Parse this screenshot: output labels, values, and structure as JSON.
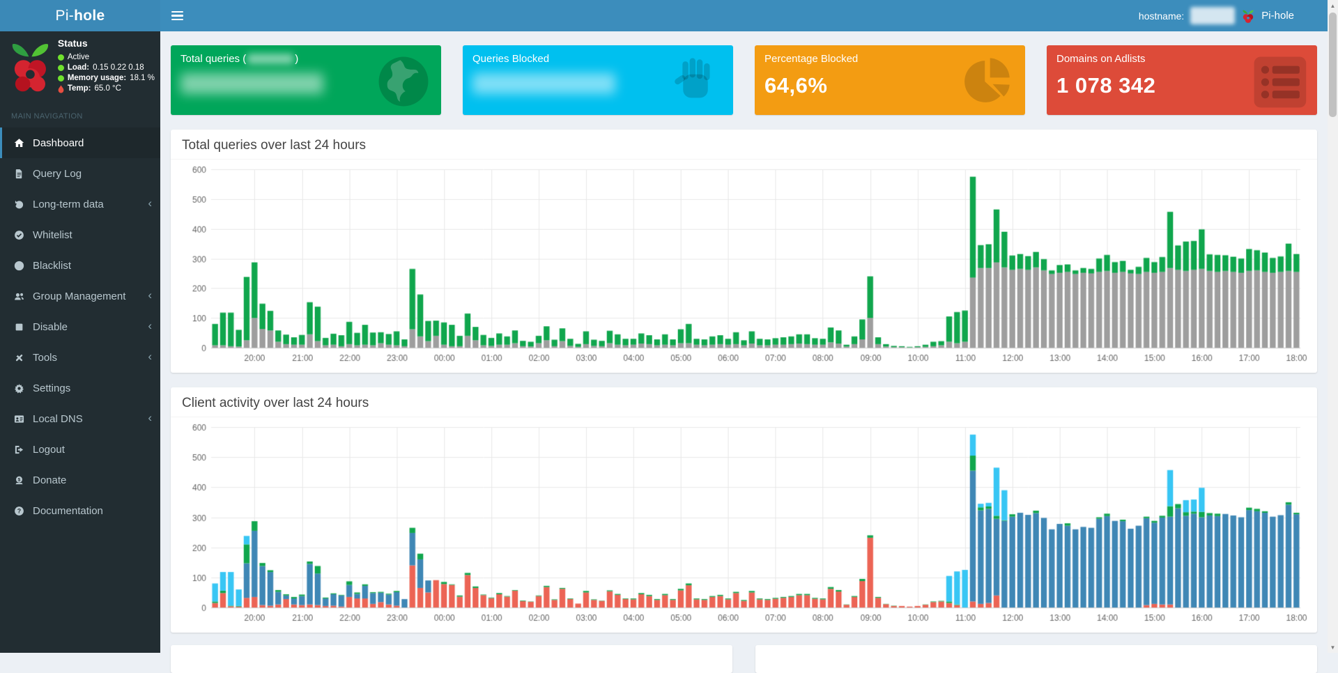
{
  "navbar": {
    "brand_light": "Pi-",
    "brand_bold": "hole",
    "hostname_label": "hostname:",
    "hostname_value": "",
    "right_brand": "Pi-hole"
  },
  "sidebar": {
    "status": {
      "title": "Status",
      "active_label": "Active",
      "load_label": "Load:",
      "load_values": "0.15  0.22  0.18",
      "memory_label": "Memory usage:",
      "memory_value": "18.1 %",
      "temp_label": "Temp:",
      "temp_value": "65.0 °C"
    },
    "section_label": "MAIN NAVIGATION",
    "items": [
      {
        "label": "Dashboard",
        "icon": "home-icon",
        "active": true,
        "has_submenu": false
      },
      {
        "label": "Query Log",
        "icon": "file-icon",
        "active": false,
        "has_submenu": false
      },
      {
        "label": "Long-term data",
        "icon": "history-icon",
        "active": false,
        "has_submenu": true
      },
      {
        "label": "Whitelist",
        "icon": "check-circle-icon",
        "active": false,
        "has_submenu": false
      },
      {
        "label": "Blacklist",
        "icon": "ban-icon",
        "active": false,
        "has_submenu": false
      },
      {
        "label": "Group Management",
        "icon": "users-icon",
        "active": false,
        "has_submenu": true
      },
      {
        "label": "Disable",
        "icon": "stop-icon",
        "active": false,
        "has_submenu": true
      },
      {
        "label": "Tools",
        "icon": "tools-icon",
        "active": false,
        "has_submenu": true
      },
      {
        "label": "Settings",
        "icon": "gear-icon",
        "active": false,
        "has_submenu": false
      },
      {
        "label": "Local DNS",
        "icon": "address-card-icon",
        "active": false,
        "has_submenu": true
      },
      {
        "label": "Logout",
        "icon": "sign-out-icon",
        "active": false,
        "has_submenu": false
      },
      {
        "label": "Donate",
        "icon": "donate-icon",
        "active": false,
        "has_submenu": false
      },
      {
        "label": "Documentation",
        "icon": "question-circle-icon",
        "active": false,
        "has_submenu": false
      }
    ]
  },
  "cards": [
    {
      "title": "Total queries (",
      "title_suffix": ")",
      "title_redacted": true,
      "value": "",
      "value_redacted": true,
      "color": "#00a65a",
      "icon": "globe-icon"
    },
    {
      "title": "Queries Blocked",
      "title_suffix": "",
      "title_redacted": false,
      "value": "",
      "value_redacted": true,
      "color": "#00c0ef",
      "icon": "hand-icon"
    },
    {
      "title": "Percentage Blocked",
      "title_suffix": "",
      "title_redacted": false,
      "value": "64,6%",
      "value_redacted": false,
      "color": "#f39c12",
      "icon": "pie-chart-icon"
    },
    {
      "title": "Domains on Adlists",
      "title_suffix": "",
      "title_redacted": false,
      "value": "1 078 342",
      "value_redacted": false,
      "color": "#dd4b39",
      "icon": "list-icon"
    }
  ],
  "panels": [
    {
      "title": "Total queries over last 24 hours"
    },
    {
      "title": "Client activity over last 24 hours"
    }
  ],
  "chart_data": [
    {
      "type": "bar",
      "stacked": true,
      "title": "Total queries over last 24 hours",
      "xlabel": "",
      "ylabel": "",
      "ylim": [
        0,
        600
      ],
      "yticks": [
        0,
        100,
        200,
        300,
        400,
        500,
        600
      ],
      "grid": true,
      "legend": "none",
      "interval_minutes": 10,
      "x_labels": [
        "20:00",
        "21:00",
        "22:00",
        "23:00",
        "00:00",
        "01:00",
        "02:00",
        "03:00",
        "04:00",
        "05:00",
        "06:00",
        "07:00",
        "08:00",
        "09:00",
        "10:00",
        "11:00",
        "12:00",
        "13:00",
        "14:00",
        "15:00",
        "16:00",
        "17:00",
        "18:00"
      ],
      "first_label_index": 5,
      "label_step": 6,
      "series": [
        {
          "name": "grey",
          "color": "#9e9e9e",
          "values": [
            8,
            8,
            5,
            4,
            25,
            100,
            63,
            58,
            20,
            12,
            10,
            10,
            45,
            22,
            8,
            10,
            5,
            12,
            8,
            10,
            8,
            15,
            10,
            8,
            5,
            62,
            38,
            22,
            40,
            10,
            5,
            5,
            40,
            25,
            8,
            6,
            10,
            10,
            15,
            5,
            4,
            15,
            25,
            5,
            22,
            6,
            3,
            12,
            6,
            5,
            15,
            10,
            8,
            10,
            14,
            12,
            8,
            10,
            8,
            15,
            15,
            10,
            8,
            10,
            12,
            10,
            12,
            8,
            14,
            8,
            8,
            10,
            10,
            12,
            14,
            12,
            10,
            10,
            18,
            14,
            4,
            12,
            28,
            100,
            12,
            4,
            2,
            2,
            1,
            2,
            3,
            5,
            8,
            20,
            15,
            20,
            236,
            268,
            268,
            287,
            270,
            262,
            265,
            262,
            270,
            260,
            248,
            252,
            255,
            248,
            252,
            250,
            255,
            258,
            252,
            255,
            250,
            248,
            255,
            252,
            255,
            268,
            262,
            258,
            262,
            265,
            258,
            255,
            258,
            255,
            252,
            258,
            260,
            255,
            252,
            255,
            258,
            255
          ]
        },
        {
          "name": "green",
          "color": "#10a64d",
          "values": [
            72,
            110,
            113,
            56,
            213,
            187,
            85,
            66,
            38,
            32,
            25,
            33,
            108,
            116,
            25,
            37,
            37,
            75,
            42,
            67,
            43,
            37,
            36,
            47,
            23,
            203,
            141,
            68,
            51,
            75,
            72,
            35,
            75,
            45,
            35,
            27,
            38,
            28,
            43,
            18,
            16,
            25,
            47,
            22,
            43,
            24,
            10,
            43,
            21,
            18,
            42,
            35,
            22,
            20,
            34,
            30,
            20,
            35,
            20,
            47,
            65,
            20,
            20,
            28,
            30,
            20,
            40,
            17,
            41,
            22,
            20,
            22,
            25,
            26,
            31,
            33,
            22,
            20,
            50,
            44,
            6,
            26,
            67,
            140,
            23,
            8,
            4,
            3,
            2,
            3,
            7,
            15,
            14,
            85,
            105,
            105,
            339,
            77,
            80,
            178,
            120,
            48,
            50,
            46,
            52,
            38,
            12,
            26,
            25,
            12,
            16,
            15,
            45,
            54,
            36,
            37,
            12,
            24,
            47,
            36,
            50,
            189,
            82,
            99,
            97,
            133,
            56,
            57,
            53,
            51,
            48,
            74,
            68,
            65,
            50,
            52,
            92,
            60
          ]
        }
      ]
    },
    {
      "type": "bar",
      "stacked": true,
      "title": "Client activity over last 24 hours",
      "xlabel": "",
      "ylabel": "",
      "ylim": [
        0,
        600
      ],
      "yticks": [
        0,
        100,
        200,
        300,
        400,
        500,
        600
      ],
      "grid": true,
      "legend": "none",
      "interval_minutes": 10,
      "x_labels": [
        "20:00",
        "21:00",
        "22:00",
        "23:00",
        "00:00",
        "01:00",
        "02:00",
        "03:00",
        "04:00",
        "05:00",
        "06:00",
        "07:00",
        "08:00",
        "09:00",
        "10:00",
        "11:00",
        "12:00",
        "13:00",
        "14:00",
        "15:00",
        "16:00",
        "17:00",
        "18:00"
      ],
      "first_label_index": 5,
      "label_step": 6,
      "series": [
        {
          "name": "client-red",
          "color": "#ec6455",
          "values": [
            15,
            48,
            4,
            3,
            32,
            35,
            8,
            6,
            10,
            28,
            10,
            8,
            10,
            8,
            5,
            6,
            3,
            35,
            30,
            30,
            12,
            18,
            10,
            6,
            0,
            140,
            65,
            50,
            91,
            78,
            75,
            36,
            108,
            65,
            41,
            31,
            44,
            36,
            56,
            21,
            19,
            38,
            68,
            25,
            62,
            28,
            13,
            50,
            25,
            22,
            54,
            42,
            28,
            27,
            44,
            38,
            25,
            41,
            25,
            57,
            74,
            27,
            25,
            35,
            38,
            27,
            48,
            22,
            50,
            27,
            25,
            29,
            32,
            35,
            41,
            41,
            29,
            27,
            62,
            53,
            9,
            35,
            88,
            232,
            32,
            11,
            5,
            5,
            3,
            5,
            9,
            18,
            20,
            15,
            8,
            0,
            20,
            12,
            15,
            40,
            0,
            0,
            0,
            0,
            0,
            0,
            0,
            0,
            0,
            0,
            0,
            0,
            0,
            0,
            0,
            0,
            0,
            0,
            8,
            12,
            10,
            10,
            0,
            0,
            0,
            0,
            0,
            0,
            0,
            0,
            0,
            0,
            0,
            0,
            0,
            0,
            0,
            0
          ]
        },
        {
          "name": "client-blue",
          "color": "#3f87b5",
          "values": [
            0,
            0,
            0,
            0,
            115,
            220,
            130,
            112,
            42,
            12,
            20,
            30,
            135,
            105,
            25,
            38,
            37,
            40,
            15,
            42,
            36,
            31,
            33,
            45,
            28,
            108,
            95,
            40,
            0,
            0,
            0,
            0,
            0,
            0,
            0,
            0,
            0,
            0,
            0,
            0,
            0,
            0,
            0,
            0,
            0,
            0,
            0,
            0,
            0,
            0,
            0,
            0,
            0,
            0,
            0,
            0,
            0,
            0,
            0,
            0,
            0,
            0,
            0,
            0,
            0,
            0,
            0,
            0,
            0,
            0,
            0,
            0,
            0,
            0,
            0,
            0,
            0,
            0,
            0,
            0,
            0,
            0,
            0,
            0,
            0,
            0,
            0,
            0,
            0,
            0,
            0,
            0,
            0,
            0,
            0,
            0,
            435,
            311,
            313,
            255,
            288,
            302,
            315,
            308,
            314,
            298,
            260,
            278,
            272,
            260,
            268,
            265,
            295,
            304,
            288,
            287,
            262,
            272,
            289,
            270,
            289,
            292,
            330,
            305,
            312,
            300,
            306,
            304,
            311,
            306,
            300,
            324,
            320,
            315,
            302,
            307,
            342,
            310
          ]
        },
        {
          "name": "client-green",
          "color": "#10a64d",
          "values": [
            5,
            8,
            2,
            2,
            63,
            32,
            10,
            6,
            6,
            4,
            5,
            5,
            8,
            25,
            3,
            3,
            2,
            12,
            5,
            5,
            3,
            3,
            3,
            4,
            0,
            17,
            19,
            0,
            0,
            7,
            2,
            4,
            7,
            5,
            2,
            2,
            4,
            2,
            2,
            2,
            1,
            2,
            4,
            2,
            3,
            2,
            0,
            5,
            2,
            1,
            3,
            3,
            2,
            3,
            4,
            4,
            3,
            4,
            3,
            5,
            6,
            3,
            3,
            3,
            4,
            3,
            4,
            3,
            5,
            3,
            3,
            3,
            3,
            3,
            4,
            4,
            3,
            3,
            6,
            5,
            1,
            3,
            7,
            8,
            3,
            1,
            1,
            0,
            0,
            0,
            1,
            2,
            2,
            5,
            2,
            0,
            50,
            10,
            8,
            10,
            2,
            8,
            0,
            0,
            8,
            0,
            0,
            0,
            8,
            0,
            0,
            0,
            5,
            8,
            0,
            5,
            0,
            0,
            5,
            6,
            6,
            35,
            14,
            12,
            7,
            18,
            8,
            8,
            0,
            0,
            0,
            8,
            8,
            5,
            0,
            0,
            8,
            5
          ]
        },
        {
          "name": "client-cyan",
          "color": "#38c6f4",
          "values": [
            60,
            62,
            112,
            55,
            28,
            0,
            0,
            0,
            0,
            0,
            0,
            0,
            0,
            0,
            0,
            0,
            0,
            0,
            0,
            0,
            0,
            0,
            0,
            0,
            0,
            0,
            0,
            0,
            0,
            0,
            0,
            0,
            0,
            0,
            0,
            0,
            0,
            0,
            0,
            0,
            0,
            0,
            0,
            0,
            0,
            0,
            0,
            0,
            0,
            0,
            0,
            0,
            0,
            0,
            0,
            0,
            0,
            0,
            0,
            0,
            0,
            0,
            0,
            0,
            0,
            0,
            0,
            0,
            0,
            0,
            0,
            0,
            0,
            0,
            0,
            0,
            0,
            0,
            0,
            0,
            0,
            0,
            0,
            0,
            0,
            0,
            0,
            0,
            0,
            0,
            0,
            0,
            0,
            85,
            110,
            125,
            70,
            12,
            12,
            160,
            100,
            0,
            0,
            0,
            0,
            0,
            0,
            0,
            0,
            0,
            0,
            0,
            0,
            0,
            0,
            0,
            0,
            0,
            0,
            0,
            0,
            120,
            0,
            40,
            40,
            80,
            0,
            0,
            0,
            0,
            0,
            0,
            0,
            0,
            0,
            0,
            0,
            0
          ]
        }
      ]
    }
  ]
}
